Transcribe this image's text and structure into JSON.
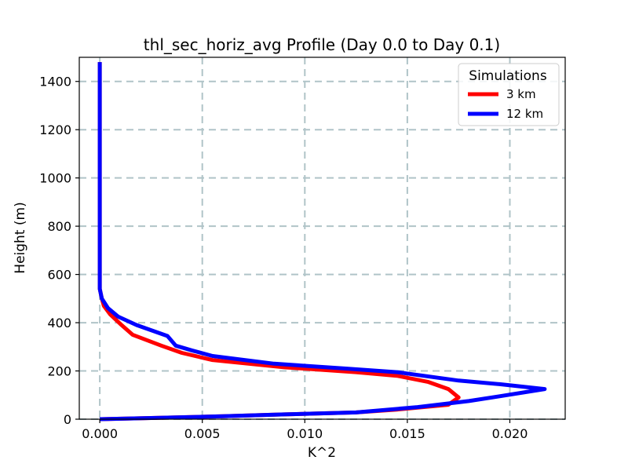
{
  "chart_data": {
    "type": "line",
    "title": "thl_sec_horiz_avg Profile (Day 0.0 to Day 0.1)",
    "xlabel": "K^2",
    "ylabel": "Height (m)",
    "xlim": [
      -0.001,
      0.0227
    ],
    "ylim": [
      0,
      1500
    ],
    "xticks": [
      0.0,
      0.005,
      0.01,
      0.015,
      0.02
    ],
    "xtick_labels": [
      "0.000",
      "0.005",
      "0.010",
      "0.015",
      "0.020"
    ],
    "yticks": [
      0,
      200,
      400,
      600,
      800,
      1000,
      1200,
      1400
    ],
    "ytick_labels": [
      "0",
      "200",
      "400",
      "600",
      "800",
      "1000",
      "1200",
      "1400"
    ],
    "grid": true,
    "legend": {
      "title": "Simulations",
      "placement": "top-right"
    },
    "series": [
      {
        "name": "3 km",
        "color": "#ff0000",
        "points": [
          [
            0.0,
            0
          ],
          [
            0.0025,
            5
          ],
          [
            0.006,
            12
          ],
          [
            0.009,
            20
          ],
          [
            0.0125,
            28
          ],
          [
            0.0145,
            40
          ],
          [
            0.017,
            60
          ],
          [
            0.0175,
            90
          ],
          [
            0.017,
            125
          ],
          [
            0.016,
            155
          ],
          [
            0.0145,
            180
          ],
          [
            0.0125,
            195
          ],
          [
            0.009,
            215
          ],
          [
            0.0055,
            245
          ],
          [
            0.004,
            275
          ],
          [
            0.003,
            305
          ],
          [
            0.0016,
            350
          ],
          [
            0.001,
            395
          ],
          [
            0.0005,
            435
          ],
          [
            0.0002,
            470
          ],
          [
            0.0001,
            500
          ],
          [
            0.0,
            540
          ],
          [
            0.0,
            570
          ],
          [
            0.0,
            600
          ],
          [
            0.0,
            800
          ],
          [
            0.0,
            1000
          ],
          [
            0.0,
            1200
          ],
          [
            0.0,
            1400
          ],
          [
            0.0,
            1480
          ]
        ]
      },
      {
        "name": "12 km",
        "color": "#0000ff",
        "points": [
          [
            0.0,
            0
          ],
          [
            0.0025,
            5
          ],
          [
            0.006,
            12
          ],
          [
            0.009,
            20
          ],
          [
            0.0125,
            28
          ],
          [
            0.0155,
            50
          ],
          [
            0.018,
            75
          ],
          [
            0.0195,
            95
          ],
          [
            0.0217,
            125
          ],
          [
            0.0195,
            145
          ],
          [
            0.0175,
            160
          ],
          [
            0.0145,
            195
          ],
          [
            0.012,
            210
          ],
          [
            0.0085,
            230
          ],
          [
            0.0055,
            262
          ],
          [
            0.0045,
            285
          ],
          [
            0.0037,
            305
          ],
          [
            0.0033,
            345
          ],
          [
            0.0018,
            390
          ],
          [
            0.0009,
            425
          ],
          [
            0.0004,
            460
          ],
          [
            0.0001,
            500
          ],
          [
            0.0,
            540
          ],
          [
            0.0,
            600
          ],
          [
            0.0,
            800
          ],
          [
            0.0,
            1000
          ],
          [
            0.0,
            1200
          ],
          [
            0.0,
            1400
          ],
          [
            0.0,
            1480
          ]
        ]
      }
    ]
  }
}
